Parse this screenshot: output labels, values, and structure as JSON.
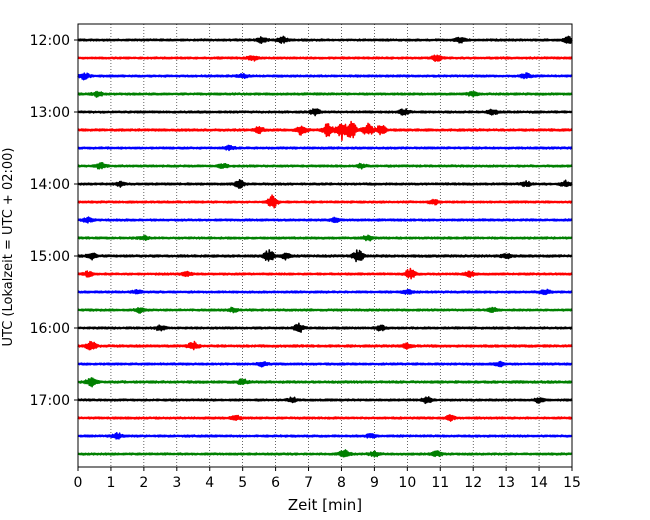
{
  "chart_data": {
    "type": "line",
    "title": "",
    "xlabel": "Zeit  [min]",
    "ylabel": "UTC (Lokalzeit = UTC + 02:00)",
    "xlim": [
      0,
      15
    ],
    "x_ticks": [
      "0",
      "1",
      "2",
      "3",
      "4",
      "5",
      "6",
      "7",
      "8",
      "9",
      "10",
      "11",
      "12",
      "13",
      "14",
      "15"
    ],
    "y_tick_labels": [
      "12:00",
      "13:00",
      "14:00",
      "15:00",
      "16:00",
      "17:00"
    ],
    "trace_colors": [
      "#000000",
      "#ff0000",
      "#0000ff",
      "#008000"
    ],
    "traces": [
      {
        "start": "12:00",
        "color": "#000000",
        "amp": 0.4,
        "events": [
          [
            5.6,
            0.6
          ],
          [
            6.2,
            0.6
          ],
          [
            11.6,
            0.5
          ],
          [
            14.9,
            0.6
          ]
        ]
      },
      {
        "start": "12:15",
        "color": "#ff0000",
        "amp": 0.4,
        "events": [
          [
            5.3,
            0.5
          ],
          [
            10.9,
            0.6
          ]
        ]
      },
      {
        "start": "12:30",
        "color": "#0000ff",
        "amp": 0.4,
        "events": [
          [
            0.2,
            0.6
          ],
          [
            5.0,
            0.4
          ],
          [
            13.6,
            0.5
          ]
        ]
      },
      {
        "start": "12:45",
        "color": "#008000",
        "amp": 0.4,
        "events": [
          [
            0.6,
            0.5
          ],
          [
            12.0,
            0.5
          ]
        ]
      },
      {
        "start": "13:00",
        "color": "#000000",
        "amp": 0.4,
        "events": [
          [
            7.2,
            0.6
          ],
          [
            9.9,
            0.6
          ],
          [
            12.6,
            0.5
          ]
        ]
      },
      {
        "start": "13:15",
        "color": "#ff0000",
        "amp": 0.45,
        "events": [
          [
            5.5,
            0.6
          ],
          [
            6.8,
            1.0
          ],
          [
            7.6,
            1.4
          ],
          [
            8.0,
            1.9
          ],
          [
            8.3,
            1.6
          ],
          [
            8.8,
            1.2
          ],
          [
            9.2,
            0.9
          ]
        ]
      },
      {
        "start": "13:30",
        "color": "#0000ff",
        "amp": 0.4,
        "events": [
          [
            4.6,
            0.4
          ]
        ]
      },
      {
        "start": "13:45",
        "color": "#008000",
        "amp": 0.4,
        "events": [
          [
            0.7,
            0.6
          ],
          [
            4.4,
            0.4
          ],
          [
            8.6,
            0.4
          ]
        ]
      },
      {
        "start": "14:00",
        "color": "#000000",
        "amp": 0.4,
        "events": [
          [
            1.3,
            0.5
          ],
          [
            4.9,
            0.7
          ],
          [
            13.6,
            0.5
          ],
          [
            14.8,
            0.6
          ]
        ]
      },
      {
        "start": "14:15",
        "color": "#ff0000",
        "amp": 0.4,
        "events": [
          [
            5.9,
            1.3
          ],
          [
            10.8,
            0.5
          ]
        ]
      },
      {
        "start": "14:30",
        "color": "#0000ff",
        "amp": 0.4,
        "events": [
          [
            0.3,
            0.5
          ],
          [
            7.8,
            0.4
          ]
        ]
      },
      {
        "start": "14:45",
        "color": "#008000",
        "amp": 0.4,
        "events": [
          [
            2.0,
            0.4
          ],
          [
            8.8,
            0.5
          ]
        ]
      },
      {
        "start": "15:00",
        "color": "#000000",
        "amp": 0.45,
        "events": [
          [
            0.4,
            0.6
          ],
          [
            5.8,
            1.2
          ],
          [
            6.3,
            0.6
          ],
          [
            8.5,
            1.3
          ],
          [
            13.0,
            0.5
          ]
        ]
      },
      {
        "start": "15:15",
        "color": "#ff0000",
        "amp": 0.4,
        "events": [
          [
            0.3,
            0.5
          ],
          [
            3.3,
            0.4
          ],
          [
            10.1,
            1.1
          ],
          [
            11.9,
            0.5
          ]
        ]
      },
      {
        "start": "15:30",
        "color": "#0000ff",
        "amp": 0.4,
        "events": [
          [
            1.8,
            0.4
          ],
          [
            10.0,
            0.4
          ],
          [
            14.2,
            0.4
          ]
        ]
      },
      {
        "start": "15:45",
        "color": "#008000",
        "amp": 0.4,
        "events": [
          [
            1.9,
            0.5
          ],
          [
            4.7,
            0.4
          ],
          [
            12.6,
            0.4
          ]
        ]
      },
      {
        "start": "16:00",
        "color": "#000000",
        "amp": 0.4,
        "events": [
          [
            2.5,
            0.5
          ],
          [
            6.7,
            0.9
          ],
          [
            9.2,
            0.5
          ]
        ]
      },
      {
        "start": "16:15",
        "color": "#ff0000",
        "amp": 0.45,
        "events": [
          [
            0.4,
            0.9
          ],
          [
            3.5,
            0.8
          ],
          [
            10.0,
            0.5
          ]
        ]
      },
      {
        "start": "16:30",
        "color": "#0000ff",
        "amp": 0.4,
        "events": [
          [
            5.6,
            0.4
          ],
          [
            12.8,
            0.4
          ]
        ]
      },
      {
        "start": "16:45",
        "color": "#008000",
        "amp": 0.45,
        "events": [
          [
            0.4,
            0.8
          ],
          [
            5.0,
            0.5
          ]
        ]
      },
      {
        "start": "17:00",
        "color": "#000000",
        "amp": 0.4,
        "events": [
          [
            6.5,
            0.5
          ],
          [
            10.6,
            0.6
          ],
          [
            14.0,
            0.5
          ]
        ]
      },
      {
        "start": "17:15",
        "color": "#ff0000",
        "amp": 0.4,
        "events": [
          [
            4.8,
            0.4
          ],
          [
            11.3,
            0.5
          ]
        ]
      },
      {
        "start": "17:30",
        "color": "#0000ff",
        "amp": 0.4,
        "events": [
          [
            1.2,
            0.5
          ],
          [
            8.9,
            0.4
          ]
        ]
      },
      {
        "start": "17:45",
        "color": "#008000",
        "amp": 0.4,
        "events": [
          [
            8.1,
            0.8
          ],
          [
            9.0,
            0.5
          ],
          [
            10.9,
            0.5
          ]
        ]
      }
    ],
    "grid": true,
    "grid_axis": "x",
    "legend": "none"
  }
}
